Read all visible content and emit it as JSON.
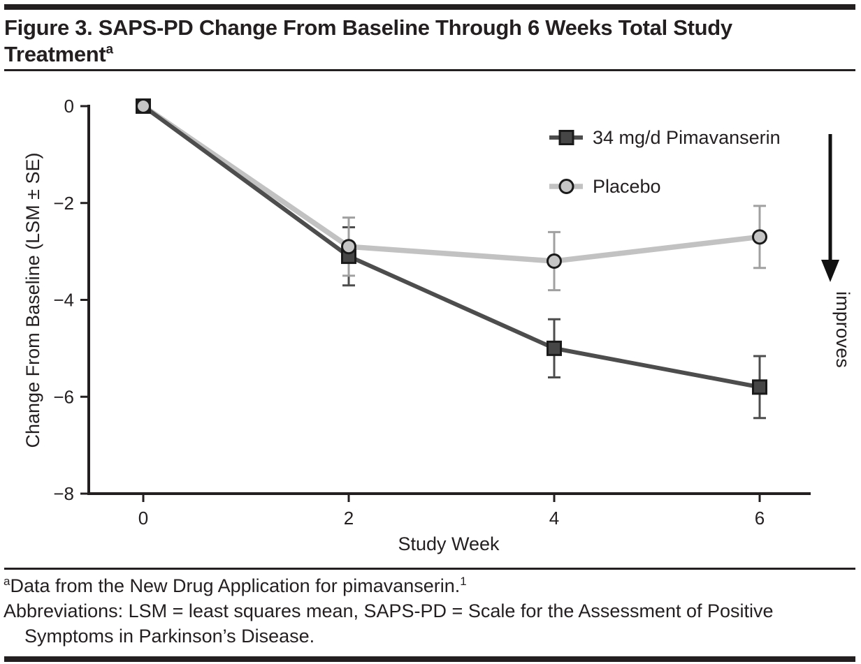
{
  "figure": {
    "title_line1": "Figure 3. SAPS-PD Change From Baseline Through 6 Weeks Total Study",
    "title_line2": "Treatment",
    "title_superscript": "a"
  },
  "chart_data": {
    "type": "line",
    "x": [
      0,
      2,
      4,
      6
    ],
    "xlabel": "Study Week",
    "ylabel": "Change From Baseline (LSM ± SE)",
    "xticks": [
      0,
      2,
      4,
      6
    ],
    "yticks": [
      0,
      -2,
      -4,
      -6,
      -8
    ],
    "ylim": [
      -8,
      0
    ],
    "xlim": [
      0,
      6.5
    ],
    "grid": false,
    "legend_position": "upper right inside",
    "series": [
      {
        "name": "34 mg/d Pimavanserin",
        "values": [
          0,
          -3.1,
          -5.0,
          -5.8
        ],
        "se": [
          0,
          0.6,
          0.6,
          0.64
        ],
        "marker": "square",
        "color": "#4d4d4d",
        "marker_fill": "#464646",
        "errorbar_color": "#4d4d4d",
        "line_width": 6
      },
      {
        "name": "Placebo",
        "values": [
          0,
          -2.9,
          -3.2,
          -2.7
        ],
        "se": [
          0,
          0.6,
          0.6,
          0.64
        ],
        "marker": "circle",
        "color": "#c2c2c2",
        "marker_fill": "#c5c5c5",
        "errorbar_color": "#a0a0a0",
        "line_width": 7.5
      }
    ],
    "annotation": {
      "arrow_label": "improves",
      "arrow_direction": "down",
      "arrow_color": "#111111",
      "label_color": "#2e2e2e"
    },
    "axis_color": "#231f20",
    "marker_edge_color": "#1a1a1a"
  },
  "footnotes": {
    "line1": {
      "sup_lead": "a",
      "text": "Data from the New Drug Application for pimavanserin.",
      "sup_trail": "1"
    },
    "line2": "Abbreviations: LSM = least squares mean, SAPS-PD = Scale for the Assessment of Positive",
    "line3": "Symptoms in Parkinson’s Disease."
  }
}
